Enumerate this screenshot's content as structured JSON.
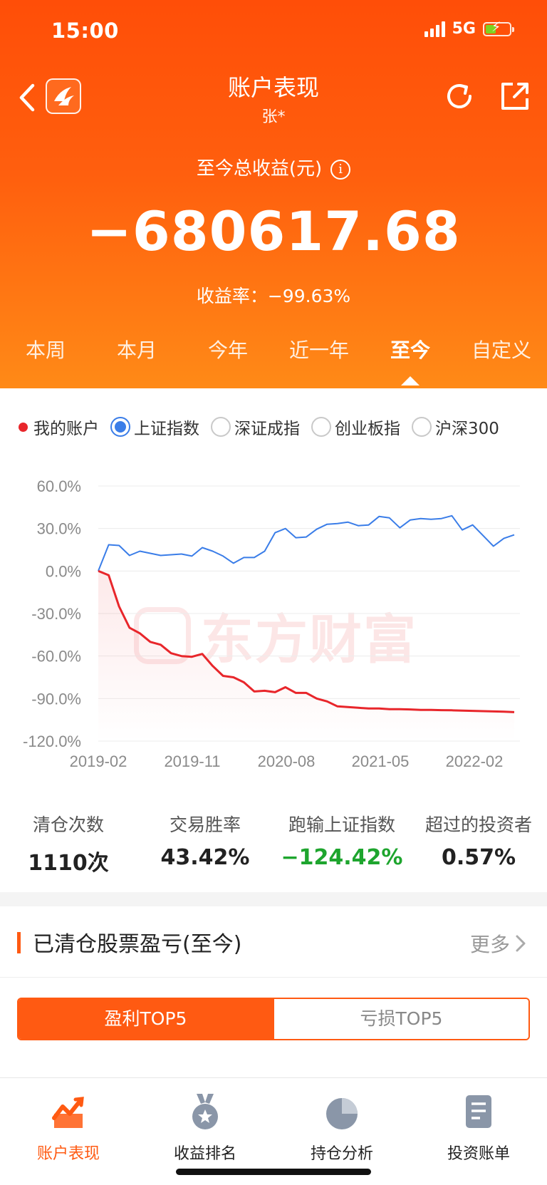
{
  "status": {
    "time": "15:00",
    "network": "5G"
  },
  "nav": {
    "title": "账户表现",
    "subtitle": "张*"
  },
  "summary": {
    "total_label": "至今总收益(元)",
    "info_glyph": "i",
    "total_value": "−680617.68",
    "rate_text": "收益率：−99.63%"
  },
  "periods": [
    "本周",
    "本月",
    "今年",
    "近一年",
    "至今",
    "自定义"
  ],
  "active_period": 4,
  "legend": {
    "my_account": "我的账户",
    "indices": [
      "上证指数",
      "深证成指",
      "创业板指",
      "沪深300"
    ],
    "selected_index": 0
  },
  "watermark": "东方财富",
  "colors": {
    "accent": "#ff5a12",
    "account_line": "#e8262b",
    "index_line": "#3a7de8",
    "negative_green": "#1ea52e"
  },
  "chart_data": {
    "type": "line",
    "x_tick_labels": [
      "2019-02",
      "2019-11",
      "2020-08",
      "2021-05",
      "2022-02"
    ],
    "y_tick_labels": [
      "60.0%",
      "30.0%",
      "0.0%",
      "-30.0%",
      "-60.0%",
      "-90.0%",
      "-120.0%"
    ],
    "ylim": [
      -120,
      60
    ],
    "y_unit": "%",
    "grid": true,
    "series": [
      {
        "name": "上证指数",
        "color": "#3a7de8",
        "values": [
          0,
          18.5,
          18,
          11,
          14,
          12.5,
          11,
          11.5,
          12,
          10.5,
          16.5,
          14,
          10.5,
          5.5,
          9.5,
          9.5,
          14,
          27,
          30,
          23.5,
          24,
          29.5,
          33,
          33.5,
          34.5,
          32,
          32.5,
          38.5,
          37.5,
          30.5,
          36,
          37,
          36.5,
          37,
          39,
          29,
          32.5,
          25,
          17.5,
          23,
          25.5
        ]
      },
      {
        "name": "我的账户",
        "color": "#e8262b",
        "values": [
          0,
          -3,
          -25,
          -40,
          -44,
          -50,
          -52,
          -58,
          -60,
          -60.5,
          -58.5,
          -67,
          -74,
          -75,
          -78.5,
          -85,
          -84.5,
          -85.5,
          -82,
          -86,
          -86,
          -90,
          -92,
          -95.5,
          -96,
          -96.5,
          -97,
          -97,
          -97.5,
          -97.5,
          -97.7,
          -98,
          -98,
          -98.2,
          -98.3,
          -98.5,
          -98.7,
          -98.9,
          -99.1,
          -99.3,
          -99.6
        ]
      }
    ]
  },
  "stats": [
    {
      "label": "清仓次数",
      "value": "1110次"
    },
    {
      "label": "交易胜率",
      "value": "43.42%"
    },
    {
      "label": "跑输上证指数",
      "value": "−124.42%"
    },
    {
      "label": "超过的投资者",
      "value": "0.57%"
    }
  ],
  "section": {
    "title": "已清仓股票盈亏(至今)",
    "more": "更多"
  },
  "segments": [
    "盈利TOP5",
    "亏损TOP5"
  ],
  "tabbar": [
    "账户表现",
    "收益排名",
    "持仓分析",
    "投资账单"
  ]
}
